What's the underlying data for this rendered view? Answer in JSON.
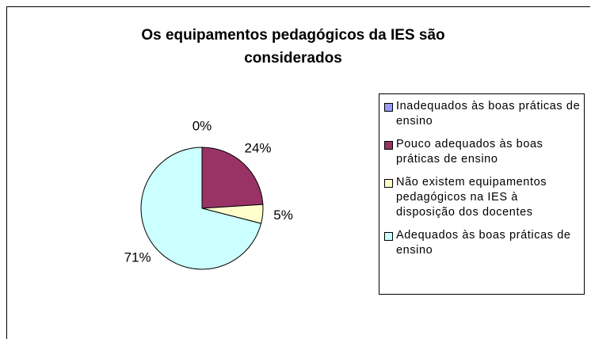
{
  "chart_data": {
    "type": "pie",
    "title": "Os equipamentos pedagógicos da IES são considerados",
    "categories": [
      "Inadequados às boas práticas de ensino",
      "Pouco adequados às boas práticas de ensino",
      "Não existem equipamentos pedagógicos na IES à disposição dos docentes",
      "Adequados às boas práticas de ensino"
    ],
    "values": [
      0,
      24,
      5,
      71
    ],
    "value_labels": [
      "0%",
      "24%",
      "5%",
      "71%"
    ],
    "colors": [
      "#9999ff",
      "#993366",
      "#ffffcc",
      "#ccffff"
    ],
    "legend": "right"
  }
}
